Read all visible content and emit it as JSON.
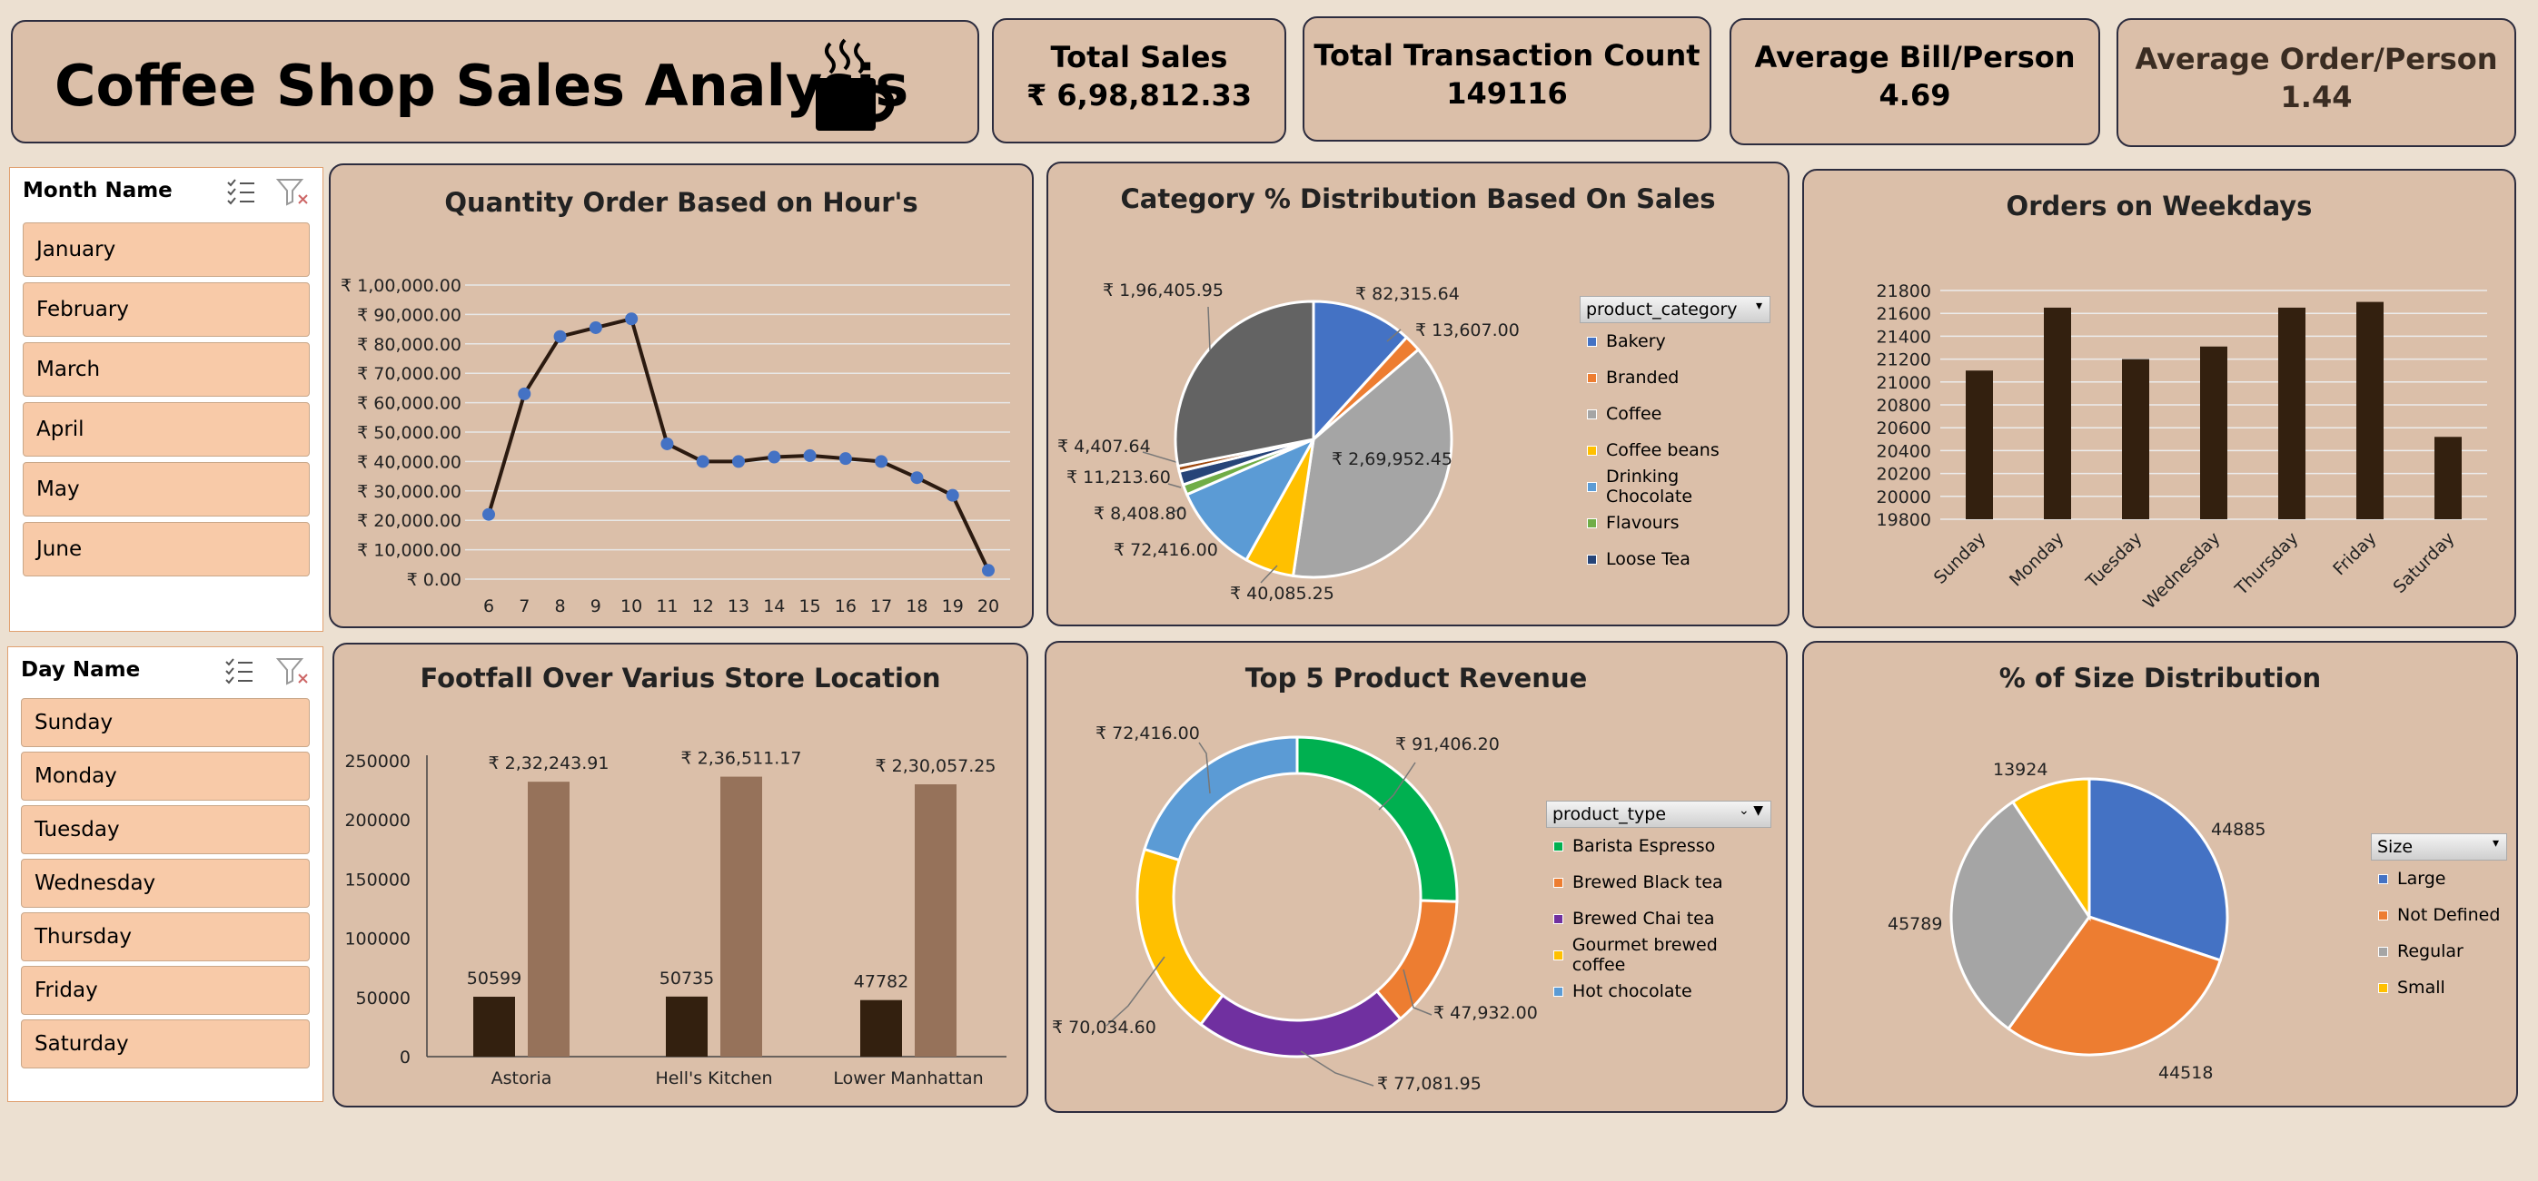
{
  "header": {
    "title": "Coffee Shop Sales Analysis"
  },
  "kpis": [
    {
      "label": "Total Sales",
      "value": "₹ 6,98,812.33"
    },
    {
      "label": "Total Transaction Count",
      "value": "149116"
    },
    {
      "label": "Average Bill/Person",
      "value": "4.69"
    },
    {
      "label": "Average Order/Person",
      "value": "1.44"
    }
  ],
  "month_slicer": {
    "header": "Month Name",
    "items": [
      "January",
      "February",
      "March",
      "April",
      "May",
      "June"
    ]
  },
  "day_slicer": {
    "header": "Day Name",
    "items": [
      "Sunday",
      "Monday",
      "Tuesday",
      "Wednesday",
      "Thursday",
      "Friday",
      "Saturday"
    ]
  },
  "colors": {
    "dark_bar": "#33200f",
    "light_bar": "#96725a",
    "line": "#2b1a10",
    "marker": "#4472c4",
    "panel": "#dbbfa9"
  },
  "chart_data": [
    {
      "type": "line",
      "title": "Quantity Order Based on Hour's",
      "x": [
        6,
        7,
        8,
        9,
        10,
        11,
        12,
        13,
        14,
        15,
        16,
        17,
        18,
        19,
        20
      ],
      "y": [
        22000,
        63000,
        82500,
        85500,
        88500,
        46000,
        40000,
        40000,
        41500,
        42000,
        41000,
        40000,
        34500,
        28500,
        3000
      ],
      "ylim": [
        0,
        100000
      ],
      "yticks": [
        "₹ 0.00",
        "₹ 10,000.00",
        "₹ 20,000.00",
        "₹ 30,000.00",
        "₹ 40,000.00",
        "₹ 50,000.00",
        "₹ 60,000.00",
        "₹ 70,000.00",
        "₹ 80,000.00",
        "₹ 90,000.00",
        "₹ 1,00,000.00"
      ],
      "grid": true
    },
    {
      "type": "pie",
      "title": "Category % Distribution Based On Sales",
      "legend_header": "product_category",
      "slices": [
        {
          "name": "Bakery",
          "value": 82315.64,
          "label": "₹ 82,315.64",
          "color": "#4472c4"
        },
        {
          "name": "Branded",
          "value": 13607.0,
          "label": "₹ 13,607.00",
          "color": "#ed7d31"
        },
        {
          "name": "Coffee",
          "value": 269952.45,
          "label": "₹ 2,69,952.45",
          "color": "#a5a5a5"
        },
        {
          "name": "Coffee beans",
          "value": 40085.25,
          "label": "₹ 40,085.25",
          "color": "#ffc000"
        },
        {
          "name": "Drinking Chocolate",
          "value": 72416.0,
          "label": "₹ 72,416.00",
          "color": "#5b9bd5"
        },
        {
          "name": "Flavours",
          "value": 8408.8,
          "label": "₹ 8,408.80",
          "color": "#70ad47"
        },
        {
          "name": "Loose Tea",
          "value": 11213.6,
          "label": "₹ 11,213.60",
          "color": "#264478"
        },
        {
          "name": "",
          "value": 4407.64,
          "label": "₹ 4,407.64",
          "color": "#9e480e"
        },
        {
          "name": "",
          "value": 196405.95,
          "label": "₹ 1,96,405.95",
          "color": "#636363"
        }
      ],
      "legend": [
        "Bakery",
        "Branded",
        "Coffee",
        "Coffee beans",
        "Drinking Chocolate",
        "Flavours",
        "Loose Tea"
      ]
    },
    {
      "type": "bar",
      "title": "Orders on Weekdays",
      "categories": [
        "Sunday",
        "Monday",
        "Tuesday",
        "Wednesday",
        "Thursday",
        "Friday",
        "Saturday"
      ],
      "values": [
        21100,
        21650,
        21200,
        21310,
        21650,
        21700,
        20520
      ],
      "ylim": [
        19800,
        21800
      ],
      "yticks": [
        "19800",
        "20000",
        "20200",
        "20400",
        "20600",
        "20800",
        "21000",
        "21200",
        "21400",
        "21600",
        "21800"
      ],
      "grid": true
    },
    {
      "type": "bar",
      "title": "Footfall Over Varius Store Location",
      "categories": [
        "Astoria",
        "Hell's Kitchen",
        "Lower Manhattan"
      ],
      "series": [
        {
          "values": [
            50599,
            50735,
            47782
          ],
          "labels": [
            "50599",
            "50735",
            "47782"
          ]
        },
        {
          "values": [
            232243.91,
            236511.17,
            230057.25
          ],
          "labels": [
            "₹ 2,32,243.91",
            "₹ 2,36,511.17",
            "₹ 2,30,057.25"
          ]
        }
      ],
      "ylim": [
        0,
        250000
      ],
      "yticks": [
        "0",
        "50000",
        "100000",
        "150000",
        "200000",
        "250000"
      ]
    },
    {
      "type": "pie",
      "title": "Top 5 Product Revenue",
      "legend_header": "product_type",
      "slices": [
        {
          "name": "Barista Espresso",
          "value": 91406.2,
          "label": "₹ 91,406.20",
          "color": "#00b050"
        },
        {
          "name": "Brewed Black tea",
          "value": 47932.0,
          "label": "₹ 47,932.00",
          "color": "#ed7d31"
        },
        {
          "name": "Brewed Chai tea",
          "value": 77081.95,
          "label": "₹ 77,081.95",
          "color": "#7030a0"
        },
        {
          "name": "Gourmet brewed coffee",
          "value": 70034.6,
          "label": "₹ 70,034.60",
          "color": "#ffc000"
        },
        {
          "name": "Hot chocolate",
          "value": 72416.0,
          "label": "₹ 72,416.00",
          "color": "#5b9bd5"
        }
      ],
      "legend": [
        "Barista Espresso",
        "Brewed Black tea",
        "Brewed Chai tea",
        "Gourmet brewed coffee",
        "Hot chocolate"
      ]
    },
    {
      "type": "pie",
      "title": "% of Size Distribution",
      "legend_header": "Size",
      "slices": [
        {
          "name": "Large",
          "value": 44885,
          "label": "44885",
          "color": "#4472c4"
        },
        {
          "name": "Not Defined",
          "value": 44518,
          "label": "44518",
          "color": "#ed7d31"
        },
        {
          "name": "Regular",
          "value": 45789,
          "label": "45789",
          "color": "#a5a5a5"
        },
        {
          "name": "Small",
          "value": 13924,
          "label": "13924",
          "color": "#ffc000"
        }
      ],
      "legend": [
        "Large",
        "Not Defined",
        "Regular",
        "Small"
      ]
    }
  ]
}
